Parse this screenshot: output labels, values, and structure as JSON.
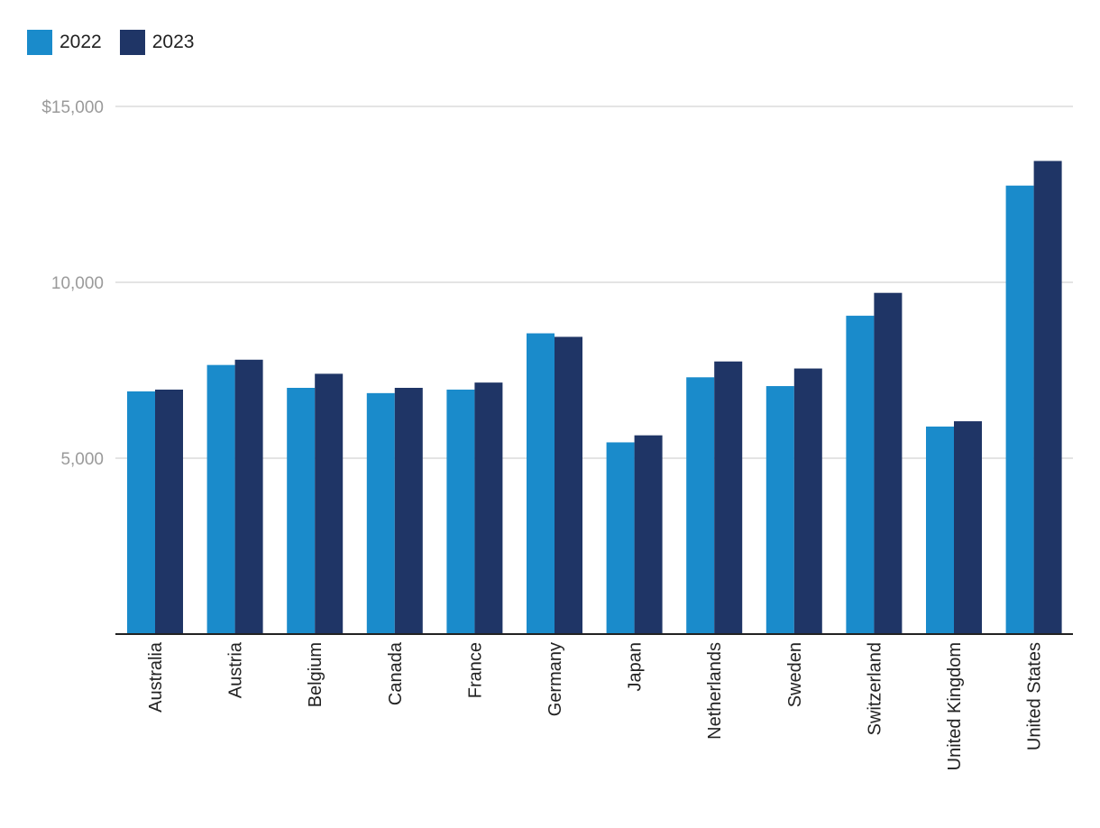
{
  "chart_data": {
    "type": "bar",
    "categories": [
      "Australia",
      "Austria",
      "Belgium",
      "Canada",
      "France",
      "Germany",
      "Japan",
      "Netherlands",
      "Sweden",
      "Switzerland",
      "United Kingdom",
      "United States"
    ],
    "series": [
      {
        "name": "2022",
        "color": "#1a8bcb",
        "values": [
          6900,
          7650,
          7000,
          6850,
          6950,
          8550,
          5450,
          7300,
          7050,
          9050,
          5900,
          12750
        ]
      },
      {
        "name": "2023",
        "color": "#1f3566",
        "values": [
          6950,
          7800,
          7400,
          7000,
          7150,
          8450,
          5650,
          7750,
          7550,
          9700,
          6050,
          13450
        ]
      }
    ],
    "yticks": [
      {
        "value": 5000,
        "label": "5,000"
      },
      {
        "value": 10000,
        "label": "10,000"
      },
      {
        "value": 15000,
        "label": "$15,000"
      }
    ],
    "ylim": [
      0,
      15000
    ],
    "grid": true,
    "legend_position": "top-left",
    "title": "",
    "xlabel": "",
    "ylabel": ""
  }
}
